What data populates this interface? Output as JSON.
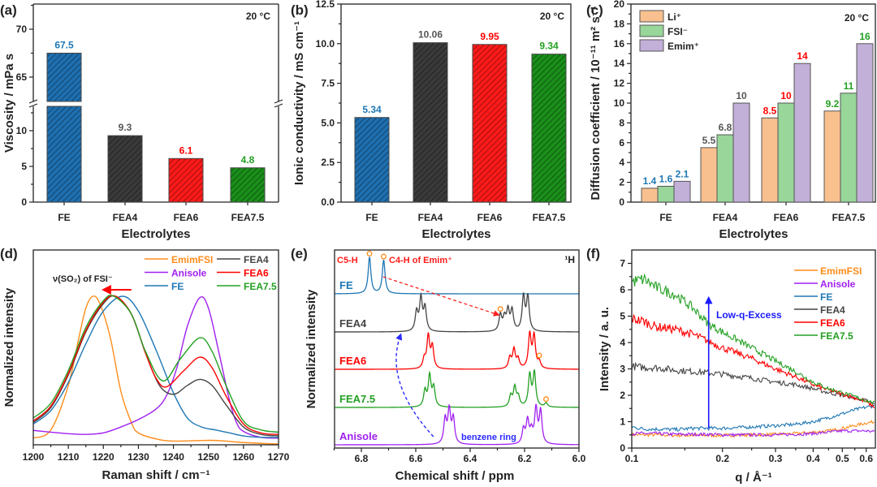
{
  "chart_data": [
    {
      "panel_label": "(a)",
      "type": "bar",
      "annotation": "20 °C",
      "categories": [
        "FE",
        "FEA4",
        "FEA6",
        "FEA7.5"
      ],
      "values": [
        67.5,
        9.3,
        6.1,
        4.8
      ],
      "xlabel": "Electrolytes",
      "ylabel": "Viscosity / mPa s",
      "ylim": [
        0,
        72.6
      ],
      "y_axis_break": [
        13.5,
        62.4
      ],
      "ytick_labels": [
        "0",
        "5",
        "10",
        "65",
        "70"
      ],
      "bar_colors": [
        "#1e6fb0",
        "#3a3a3a",
        "#ff1a1a",
        "#1a8f1a"
      ],
      "label_colors": [
        "#1f77b4",
        "#555555",
        "#ff0000",
        "#22a022"
      ],
      "bar_style": "hatched"
    },
    {
      "panel_label": "(b)",
      "type": "bar",
      "annotation": "20 °C",
      "categories": [
        "FE",
        "FEA4",
        "FEA6",
        "FEA7.5"
      ],
      "values": [
        5.34,
        10.06,
        9.95,
        9.34
      ],
      "xlabel": "Electrolytes",
      "ylabel": "Ionic conductivity / mS cm⁻¹",
      "ylim": [
        0,
        12.5
      ],
      "ytick_labels": [
        "0.0",
        "2.5",
        "5.0",
        "7.5",
        "10.0",
        "12.5"
      ],
      "bar_colors": [
        "#1e6fb0",
        "#3a3a3a",
        "#ff1a1a",
        "#1a8f1a"
      ],
      "label_colors": [
        "#1f77b4",
        "#555555",
        "#ff0000",
        "#22a022"
      ],
      "bar_style": "hatched"
    },
    {
      "panel_label": "(c)",
      "type": "bar",
      "annotation": "20 °C",
      "categories": [
        "FE",
        "FEA4",
        "FEA6",
        "FEA7.5"
      ],
      "series": [
        {
          "name": "Li⁺",
          "values": [
            1.4,
            5.5,
            8.5,
            9.2
          ],
          "color": "#f9c08f"
        },
        {
          "name": "FSI⁻",
          "values": [
            1.6,
            6.8,
            10,
            11
          ],
          "color": "#98d69a"
        },
        {
          "name": "Emim⁺",
          "values": [
            2.1,
            10,
            14,
            16
          ],
          "color": "#c2b0d9"
        }
      ],
      "xlabel": "Electrolytes",
      "ylabel": "Diffusion coefficient / 10⁻¹¹ m² s⁻¹",
      "ylim": [
        0,
        20
      ],
      "ytick_labels": [
        "0",
        "2",
        "4",
        "6",
        "8",
        "10",
        "12",
        "14",
        "16",
        "18",
        "20"
      ],
      "label_colors": [
        "#1f77b4",
        "#555555",
        "#ff0000",
        "#22a022"
      ],
      "legend": "top-left"
    },
    {
      "panel_label": "(d)",
      "type": "line",
      "xlabel": "Raman shift / cm⁻¹",
      "ylabel": "Normalized intensity",
      "xlim": [
        1200,
        1270
      ],
      "xtick_labels": [
        "1200",
        "1210",
        "1220",
        "1230",
        "1240",
        "1250",
        "1260",
        "1270"
      ],
      "annotation": "ν(SO₂) of FSI⁻",
      "annotation_arrow": {
        "from": 1228,
        "to": 1220,
        "color": "#ff0000"
      },
      "legend": "top-right",
      "series": [
        {
          "name": "EmimFSI",
          "color": "#ff8c1a",
          "points": [
            [
              1200,
              0.045
            ],
            [
              1205,
              0.1
            ],
            [
              1210,
              0.4
            ],
            [
              1213,
              0.72
            ],
            [
              1215,
              0.92
            ],
            [
              1217,
              1.0
            ],
            [
              1219,
              0.95
            ],
            [
              1222,
              0.72
            ],
            [
              1225,
              0.36
            ],
            [
              1228,
              0.15
            ],
            [
              1230,
              0.08
            ],
            [
              1235,
              0.04
            ],
            [
              1240,
              0.025
            ],
            [
              1250,
              0.03
            ],
            [
              1255,
              0.025
            ],
            [
              1260,
              0.015
            ],
            [
              1270,
              0.005
            ]
          ]
        },
        {
          "name": "Anisole",
          "color": "#a020f0",
          "points": [
            [
              1200,
              0.097
            ],
            [
              1205,
              0.085
            ],
            [
              1210,
              0.075
            ],
            [
              1215,
              0.07
            ],
            [
              1220,
              0.08
            ],
            [
              1225,
              0.12
            ],
            [
              1230,
              0.17
            ],
            [
              1235,
              0.24
            ],
            [
              1238,
              0.33
            ],
            [
              1241,
              0.52
            ],
            [
              1244,
              0.8
            ],
            [
              1247.5,
              0.99
            ],
            [
              1250,
              0.92
            ],
            [
              1253,
              0.62
            ],
            [
              1256,
              0.3
            ],
            [
              1258,
              0.15
            ],
            [
              1260,
              0.09
            ],
            [
              1265,
              0.05
            ],
            [
              1270,
              0.045
            ]
          ]
        },
        {
          "name": "FE",
          "color": "#1f77b4",
          "points": [
            [
              1200,
              0.14
            ],
            [
              1205,
              0.23
            ],
            [
              1210,
              0.42
            ],
            [
              1215,
              0.68
            ],
            [
              1220,
              0.9
            ],
            [
              1225.5,
              1.0
            ],
            [
              1230,
              0.9
            ],
            [
              1235,
              0.64
            ],
            [
              1240,
              0.35
            ],
            [
              1244,
              0.18
            ],
            [
              1248,
              0.12
            ],
            [
              1252,
              0.1
            ],
            [
              1256,
              0.08
            ],
            [
              1260,
              0.06
            ],
            [
              1265,
              0.05
            ],
            [
              1270,
              0.05
            ]
          ]
        },
        {
          "name": "FEA4",
          "color": "#444444",
          "points": [
            [
              1200,
              0.15
            ],
            [
              1205,
              0.25
            ],
            [
              1210,
              0.47
            ],
            [
              1215,
              0.76
            ],
            [
              1220,
              0.95
            ],
            [
              1223.5,
              1.0
            ],
            [
              1228,
              0.88
            ],
            [
              1232,
              0.62
            ],
            [
              1236,
              0.4
            ],
            [
              1240,
              0.34
            ],
            [
              1244,
              0.4
            ],
            [
              1247.5,
              0.44
            ],
            [
              1251,
              0.4
            ],
            [
              1255,
              0.27
            ],
            [
              1260,
              0.12
            ],
            [
              1265,
              0.07
            ],
            [
              1270,
              0.06
            ]
          ]
        },
        {
          "name": "FEA6",
          "color": "#ff0000",
          "points": [
            [
              1200,
              0.16
            ],
            [
              1205,
              0.26
            ],
            [
              1210,
              0.48
            ],
            [
              1215,
              0.77
            ],
            [
              1220,
              0.96
            ],
            [
              1223.5,
              1.0
            ],
            [
              1228,
              0.88
            ],
            [
              1232,
              0.62
            ],
            [
              1235,
              0.45
            ],
            [
              1238,
              0.39
            ],
            [
              1243,
              0.5
            ],
            [
              1247.5,
              0.59
            ],
            [
              1251,
              0.52
            ],
            [
              1255,
              0.33
            ],
            [
              1260,
              0.14
            ],
            [
              1265,
              0.08
            ],
            [
              1270,
              0.07
            ]
          ]
        },
        {
          "name": "FEA7.5",
          "color": "#22a022",
          "points": [
            [
              1200,
              0.18
            ],
            [
              1205,
              0.28
            ],
            [
              1210,
              0.5
            ],
            [
              1215,
              0.79
            ],
            [
              1220,
              0.97
            ],
            [
              1223,
              1.0
            ],
            [
              1228,
              0.88
            ],
            [
              1232,
              0.63
            ],
            [
              1237,
              0.43
            ],
            [
              1242,
              0.58
            ],
            [
              1247.5,
              0.72
            ],
            [
              1251,
              0.63
            ],
            [
              1255,
              0.4
            ],
            [
              1260,
              0.16
            ],
            [
              1265,
              0.1
            ],
            [
              1270,
              0.085
            ]
          ]
        }
      ]
    },
    {
      "panel_label": "(e)",
      "type": "line",
      "xlabel": "Chemical shift / ppm",
      "ylabel": "Normalized intensity",
      "xlim": [
        6.9,
        6.0
      ],
      "xtick_labels": [
        "6.8",
        "6.6",
        "6.4",
        "6.2",
        "6.0"
      ],
      "nucleus_label": "¹H",
      "annotations": {
        "c5h": "C5-H",
        "c4h": "C4-H of Emim⁺",
        "benzene": "benzene ring"
      },
      "marker_color": "#ff8c1a",
      "series": [
        {
          "name": "FE",
          "color": "#1f77b4",
          "peaks": [
            [
              6.77,
              1.0
            ],
            [
              6.718,
              0.92
            ]
          ],
          "markers": [
            6.77,
            6.718
          ]
        },
        {
          "name": "FEA4",
          "color": "#444444",
          "peaks": [
            [
              6.597,
              0.53
            ],
            [
              6.581,
              0.89
            ],
            [
              6.566,
              0.64
            ],
            [
              6.289,
              0.45
            ],
            [
              6.274,
              0.35
            ],
            [
              6.261,
              0.55
            ],
            [
              6.246,
              0.56
            ],
            [
              6.204,
              0.94
            ],
            [
              6.188,
              0.93
            ]
          ],
          "markers": [
            6.289
          ]
        },
        {
          "name": "FEA6",
          "color": "#ff0000",
          "peaks": [
            [
              6.569,
              0.26
            ],
            [
              6.554,
              0.89
            ],
            [
              6.539,
              0.6
            ],
            [
              6.254,
              0.3
            ],
            [
              6.239,
              0.52
            ],
            [
              6.224,
              0.26
            ],
            [
              6.181,
              0.93
            ],
            [
              6.165,
              0.88
            ],
            [
              6.146,
              0.18
            ]
          ],
          "markers": [
            6.146
          ]
        },
        {
          "name": "FEA7.5",
          "color": "#22a022",
          "peaks": [
            [
              6.566,
              0.44
            ],
            [
              6.549,
              0.84
            ],
            [
              6.534,
              0.52
            ],
            [
              6.251,
              0.3
            ],
            [
              6.236,
              0.53
            ],
            [
              6.223,
              0.26
            ],
            [
              6.181,
              0.87
            ],
            [
              6.164,
              0.93
            ],
            [
              6.121,
              0.11
            ]
          ],
          "markers": [
            6.121
          ]
        },
        {
          "name": "Anisole",
          "color": "#a020f0",
          "peaks": [
            [
              6.492,
              0.67
            ],
            [
              6.477,
              0.91
            ],
            [
              6.462,
              0.69
            ],
            [
              6.204,
              0.4
            ],
            [
              6.189,
              0.63
            ],
            [
              6.175,
              0.33
            ],
            [
              6.158,
              0.95
            ],
            [
              6.141,
              0.89
            ]
          ],
          "markers": []
        }
      ]
    },
    {
      "panel_label": "(f)",
      "type": "line",
      "xlabel": "q / Å⁻¹",
      "ylabel": "Intensity / a. u.",
      "x_scale": "log",
      "xlim": [
        0.1,
        0.643
      ],
      "ylim": [
        0,
        7.5
      ],
      "xtick_labels": [
        "0.1",
        "0.2",
        "0.3",
        "0.4",
        "0.5",
        "0.6"
      ],
      "ytick_labels": [
        "0",
        "1",
        "2",
        "3",
        "4",
        "5",
        "6",
        "7"
      ],
      "annotation": "Low-q-Excess",
      "annotation_arrow": {
        "x": 0.18,
        "from": 0.75,
        "to": 5.7,
        "color": "#1a1aff"
      },
      "legend": "top-right",
      "x": [
        0.1,
        0.11,
        0.12,
        0.14,
        0.16,
        0.18,
        0.2,
        0.25,
        0.3,
        0.35,
        0.4,
        0.45,
        0.5,
        0.55,
        0.6,
        0.64
      ],
      "series": [
        {
          "name": "EmimFSI",
          "color": "#ff8c1a",
          "values": [
            0.5,
            0.5,
            0.5,
            0.48,
            0.48,
            0.48,
            0.48,
            0.5,
            0.52,
            0.55,
            0.6,
            0.65,
            0.75,
            0.85,
            0.95,
            1.0
          ]
        },
        {
          "name": "Anisole",
          "color": "#a020f0",
          "values": [
            0.55,
            0.55,
            0.55,
            0.52,
            0.52,
            0.52,
            0.5,
            0.5,
            0.5,
            0.52,
            0.55,
            0.6,
            0.65,
            0.65,
            0.65,
            0.62
          ]
        },
        {
          "name": "FE",
          "color": "#1f77b4",
          "values": [
            0.8,
            0.72,
            0.72,
            0.7,
            0.75,
            0.75,
            0.75,
            0.8,
            0.85,
            0.9,
            1.0,
            1.15,
            1.3,
            1.45,
            1.55,
            1.6
          ]
        },
        {
          "name": "FEA4",
          "color": "#444444",
          "values": [
            3.1,
            3.05,
            3.05,
            2.95,
            2.9,
            2.85,
            2.8,
            2.65,
            2.5,
            2.4,
            2.25,
            2.1,
            2.0,
            1.9,
            1.8,
            1.65
          ]
        },
        {
          "name": "FEA6",
          "color": "#ff0000",
          "values": [
            4.9,
            4.8,
            4.6,
            4.5,
            4.3,
            4.05,
            3.8,
            3.4,
            3.0,
            2.7,
            2.4,
            2.2,
            2.05,
            1.9,
            1.75,
            1.55
          ]
        },
        {
          "name": "FEA7.5",
          "color": "#22a022",
          "values": [
            6.3,
            6.4,
            6.1,
            5.8,
            5.3,
            4.7,
            4.4,
            3.8,
            3.3,
            2.9,
            2.5,
            2.25,
            2.1,
            1.95,
            1.8,
            1.7
          ]
        }
      ]
    }
  ]
}
